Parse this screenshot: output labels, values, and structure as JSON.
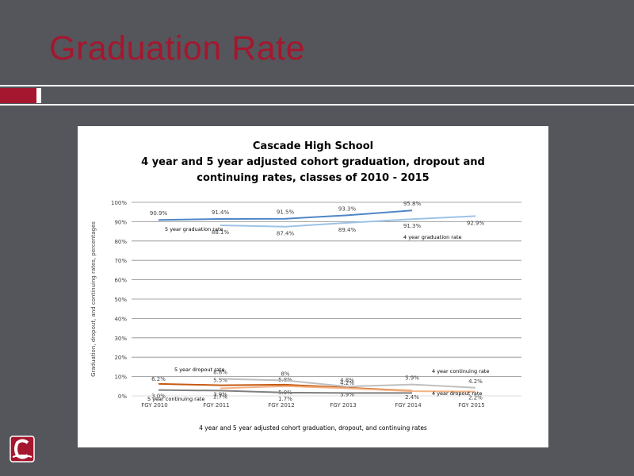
{
  "slide": {
    "title": "Graduation Rate"
  },
  "chart_data": {
    "type": "line",
    "title": [
      "Cascade High School",
      "4 year and 5 year adjusted cohort graduation, dropout and",
      "continuing rates, classes of 2010 - 2015"
    ],
    "xlabel": "4 year and 5 year adjusted cohort graduation, dropout, and continuing rates",
    "ylabel": "Graduation, dropout, and continuing rates, percentages",
    "categories": [
      "FGY 2010",
      "FGY 2011",
      "FGY 2012",
      "FGY 2013",
      "FGY 2014",
      "FGY 2015"
    ],
    "ylim": [
      0,
      100
    ],
    "yticks": [
      "0%",
      "10%",
      "20%",
      "30%",
      "40%",
      "50%",
      "60%",
      "70%",
      "80%",
      "90%",
      "100%"
    ],
    "grid": true,
    "series": [
      {
        "name": "5 year graduation rate",
        "color": "#4f86c6",
        "values": [
          90.9,
          91.4,
          91.5,
          93.3,
          95.8,
          null
        ],
        "labels": [
          "90.9%",
          "91.4%",
          "91.5%",
          "93.3%",
          "95.8%",
          ""
        ]
      },
      {
        "name": "4 year graduation rate",
        "color": "#9dc3e6",
        "values": [
          null,
          88.1,
          87.4,
          89.4,
          91.3,
          92.9
        ],
        "labels": [
          "",
          "88.1%",
          "87.4%",
          "89.4%",
          "91.3%",
          "92.9%"
        ]
      },
      {
        "name": "5 year dropout rate",
        "color": "#c55a11",
        "values": [
          6.2,
          5.5,
          5.8,
          4.2,
          2.6,
          null
        ],
        "labels": [
          "6.2%",
          "5.5%",
          "5.8%",
          "4.2%",
          "",
          ""
        ]
      },
      {
        "name": "4 year dropout rate",
        "color": "#f4b183",
        "values": [
          null,
          3.9,
          5.0,
          3.9,
          2.4,
          2.2
        ],
        "labels": [
          "",
          "3.9%",
          "5.0%",
          "3.9%",
          "2.4%",
          "2.2%"
        ]
      },
      {
        "name": "4 year continuing rate",
        "color": "#bfbfbf",
        "values": [
          null,
          8.8,
          8.0,
          4.8,
          5.9,
          4.2
        ],
        "labels": [
          "",
          "8.8%",
          "8%",
          "4.8%",
          "5.9%",
          "4.2%"
        ]
      },
      {
        "name": "5 year continuing rate",
        "color": "#7f7f7f",
        "values": [
          3.0,
          2.7,
          1.7,
          1.5,
          1.5,
          null
        ],
        "labels": [
          "3.0%",
          "2.7%",
          "1.7%",
          "",
          "",
          ""
        ]
      }
    ]
  }
}
